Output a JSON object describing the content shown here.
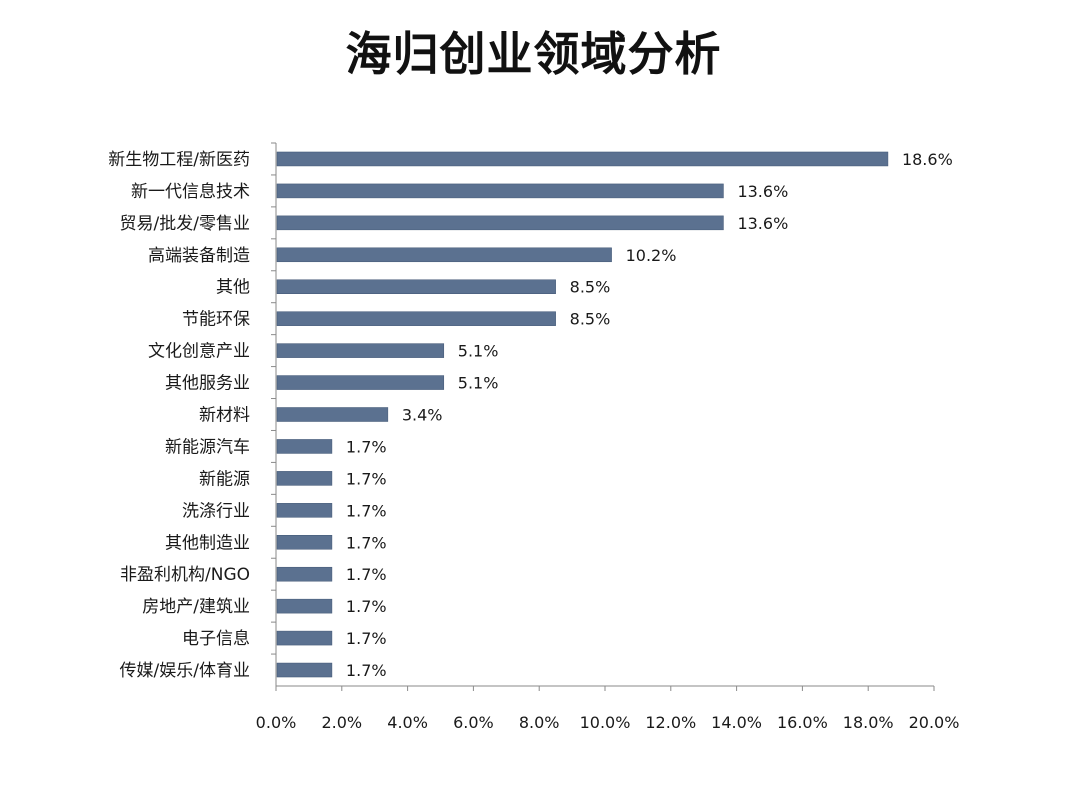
{
  "chart_data": {
    "type": "bar",
    "orientation": "horizontal",
    "title": "海归创业领域分析",
    "categories": [
      "新生物工程/新医药",
      "新一代信息技术",
      "贸易/批发/零售业",
      "高端装备制造",
      "其他",
      "节能环保",
      "文化创意产业",
      "其他服务业",
      "新材料",
      "新能源汽车",
      "新能源",
      "洗涤行业",
      "其他制造业",
      "非盈利机构/NGO",
      "房地产/建筑业",
      "电子信息",
      "传媒/娱乐/体育业"
    ],
    "values": [
      18.6,
      13.6,
      13.6,
      10.2,
      8.5,
      8.5,
      5.1,
      5.1,
      3.4,
      1.7,
      1.7,
      1.7,
      1.7,
      1.7,
      1.7,
      1.7,
      1.7
    ],
    "value_labels": [
      "18.6%",
      "13.6%",
      "13.6%",
      "10.2%",
      "8.5%",
      "8.5%",
      "5.1%",
      "5.1%",
      "3.4%",
      "1.7%",
      "1.7%",
      "1.7%",
      "1.7%",
      "1.7%",
      "1.7%",
      "1.7%",
      "1.7%"
    ],
    "xlim": [
      0,
      20
    ],
    "xticks": [
      "0.0%",
      "2.0%",
      "4.0%",
      "6.0%",
      "8.0%",
      "10.0%",
      "12.0%",
      "14.0%",
      "16.0%",
      "18.0%",
      "20.0%"
    ],
    "grid": false,
    "colors": {
      "bar": "#5b7190",
      "bar_edge": "#3f5573",
      "axis": "#8a8a8a",
      "text": "#1a1a1a"
    }
  }
}
